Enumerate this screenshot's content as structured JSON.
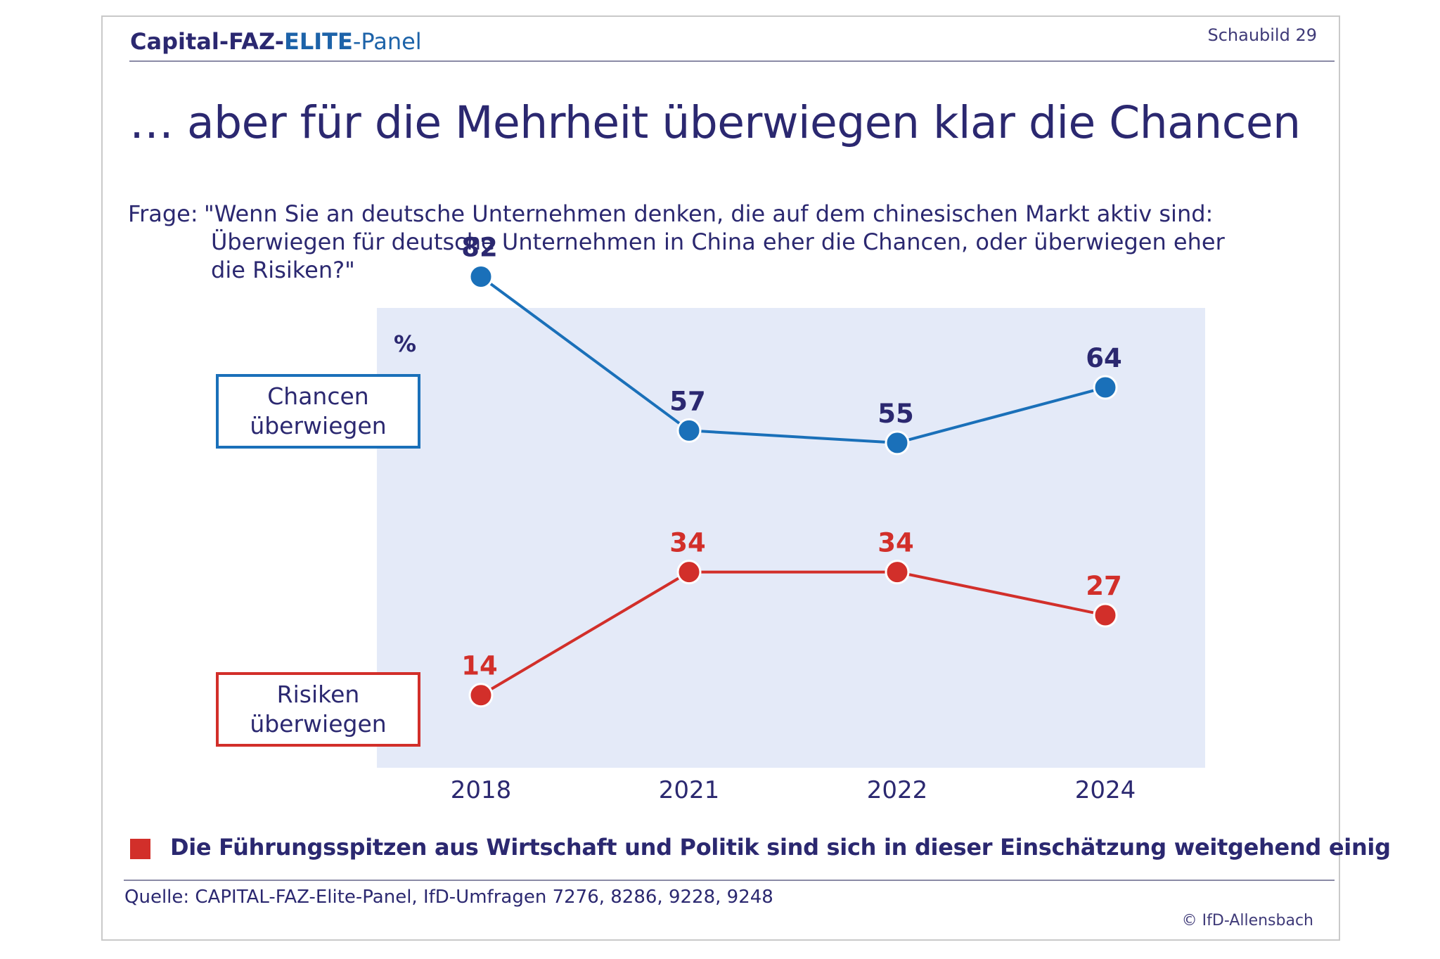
{
  "header": {
    "brand_capital": "Capital-",
    "brand_faz": "FAZ-",
    "brand_elite": "ELITE",
    "brand_panel": "-Panel",
    "figure_number": "Schaubild 29"
  },
  "title": "… aber für die Mehrheit überwiegen klar die Chancen",
  "question": {
    "label": "Frage:",
    "line1": "\"Wenn Sie an deutsche Unternehmen denken, die auf dem chinesischen Markt aktiv sind:",
    "line2": "Überwiegen für deutsche Unternehmen in China eher die Chancen, oder überwiegen eher",
    "line3": "die Risiken?\""
  },
  "legend": {
    "chancen_line1": "Chancen",
    "chancen_line2": "überwiegen",
    "risiken_line1": "Risiken",
    "risiken_line2": "überwiegen"
  },
  "chart_data": {
    "type": "line",
    "unit_label": "%",
    "x": [
      "2018",
      "2021",
      "2022",
      "2024"
    ],
    "series": [
      {
        "name": "Chancen überwiegen",
        "color": "#1a70b9",
        "label_color": "#2b2870",
        "values": [
          82,
          57,
          55,
          64
        ]
      },
      {
        "name": "Risiken überwiegen",
        "color": "#d22f2a",
        "label_color": "#d22f2a",
        "values": [
          14,
          34,
          34,
          27
        ]
      }
    ],
    "ylim": [
      0,
      100
    ],
    "grid": false,
    "legend_placement": "left"
  },
  "note": "Die Führungsspitzen aus Wirtschaft und Politik sind sich in dieser Einschätzung weitgehend einig",
  "source": "Quelle: CAPITAL-FAZ-Elite-Panel, IfD-Umfragen 7276, 8286, 9228, 9248",
  "copyright": "© IfD-Allensbach",
  "colors": {
    "accent": "#2b2870",
    "blue": "#1a70b9",
    "red": "#d22f2a",
    "plot_bg": "#e4eaf8"
  }
}
